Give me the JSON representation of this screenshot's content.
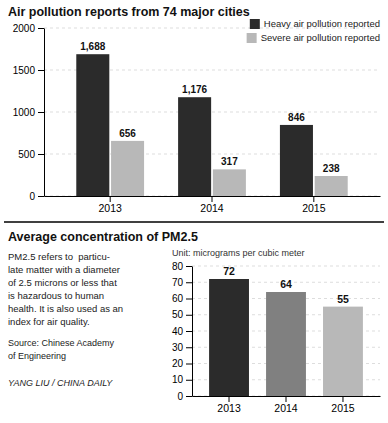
{
  "chart_data": [
    {
      "type": "bar",
      "title": "Air pollution reports from 74 major cities",
      "categories": [
        "2013",
        "2014",
        "2015"
      ],
      "series": [
        {
          "name": "Heavy air pollution reported",
          "color": "#2b2b2b",
          "values": [
            1688,
            1176,
            846
          ],
          "value_labels": [
            "1,688",
            "1,176",
            "846"
          ]
        },
        {
          "name": "Severe air pollution reported",
          "color": "#b8b8b8",
          "values": [
            656,
            317,
            238
          ]
        }
      ],
      "ylim": [
        0,
        2000
      ],
      "yticks": [
        0,
        500,
        1000,
        1500,
        2000
      ],
      "grid": true,
      "legend": "upper right",
      "data_labels": true
    },
    {
      "type": "bar",
      "title": "Average concentration of PM2.5",
      "ylabel": "Unit: micrograms per cubic meter",
      "categories": [
        "2013",
        "2014",
        "2015"
      ],
      "values": [
        72,
        64,
        55
      ],
      "colors": [
        "#2b2b2b",
        "#808080",
        "#b8b8b8"
      ],
      "ylim": [
        0,
        80
      ],
      "yticks": [
        0,
        10,
        20,
        30,
        40,
        50,
        60,
        70,
        80
      ],
      "grid": true,
      "data_labels": true,
      "annotations": [
        "PM2.5 refers to  particu-\nlate matter with a diameter\nof 2.5 microns or less that\nis hazardous to human\nhealth. It is also used as an\nindex for air quality.",
        "Source: Chinese Academy\nof Engineering",
        "YANG LIU / CHINA DAILY"
      ]
    }
  ]
}
